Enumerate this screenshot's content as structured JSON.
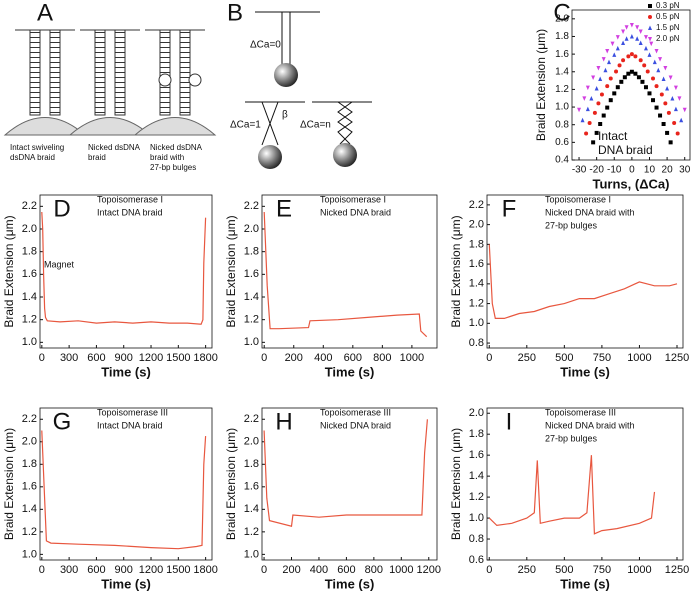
{
  "diagram_a": {
    "label": "A",
    "captions": [
      [
        "Intact swiveling",
        "dsDNA braid"
      ],
      [
        "Nicked dsDNA",
        "braid"
      ],
      [
        "Nicked dsDNA",
        "braid with",
        "27-bp bulges"
      ]
    ]
  },
  "diagram_b": {
    "label": "B",
    "labels": [
      "ΔCa=0",
      "ΔCa=1",
      "β",
      "ΔCa=n"
    ]
  },
  "chart_data": [
    {
      "type": "scatter",
      "label": "C",
      "x_label": "Turns, (ΔCa)",
      "y_label": "Braid Extension (μm)",
      "annotations": [
        "Intact",
        "DNA braid"
      ],
      "xlim": [
        -34,
        33
      ],
      "xticks": [
        -30,
        -20,
        -10,
        0,
        10,
        20,
        30
      ],
      "ylim": [
        0.4,
        2.1
      ],
      "yticks": [
        0.4,
        0.6,
        0.8,
        {
          "value": 1,
          "label": "1.0"
        },
        1.2,
        1.4,
        1.6,
        1.8,
        {
          "value": 2,
          "label": "2.0"
        }
      ],
      "series": [
        {
          "name": "0.3 pN",
          "color": "#000000",
          "marker": "square",
          "x": [
            -22,
            -20,
            -18,
            -16,
            -14,
            -12,
            -10,
            -8,
            -6,
            -4,
            -2,
            0,
            2,
            4,
            6,
            8,
            10,
            12,
            14,
            16,
            18,
            20,
            22
          ],
          "values": [
            0.6,
            0.707,
            0.808,
            0.904,
            0.994,
            1.078,
            1.155,
            1.225,
            1.286,
            1.338,
            1.378,
            1.4,
            1.378,
            1.338,
            1.286,
            1.225,
            1.155,
            1.078,
            0.994,
            0.904,
            0.808,
            0.707,
            0.6
          ]
        },
        {
          "name": "0.5 pN",
          "color": "#e8241c",
          "marker": "circle",
          "x": [
            -26,
            -24,
            -21,
            -19,
            -17,
            -14,
            -12,
            -9,
            -7,
            -5,
            -2,
            0,
            2,
            5,
            7,
            9,
            12,
            14,
            17,
            19,
            21,
            24,
            26
          ],
          "values": [
            0.7,
            0.82,
            0.934,
            1.042,
            1.143,
            1.237,
            1.324,
            1.403,
            1.472,
            1.53,
            1.575,
            1.6,
            1.575,
            1.53,
            1.472,
            1.403,
            1.324,
            1.237,
            1.143,
            1.042,
            0.934,
            0.82,
            0.7
          ]
        },
        {
          "name": "1.5 pN",
          "color": "#3b4fe0",
          "marker": "triangle",
          "x": [
            -28,
            -25,
            -23,
            -20,
            -18,
            -15,
            -13,
            -10,
            -8,
            -5,
            -3,
            0,
            3,
            5,
            8,
            10,
            13,
            15,
            18,
            20,
            23,
            25,
            28
          ],
          "values": [
            0.85,
            0.977,
            1.097,
            1.211,
            1.318,
            1.417,
            1.509,
            1.592,
            1.665,
            1.726,
            1.774,
            1.8,
            1.774,
            1.726,
            1.665,
            1.592,
            1.509,
            1.417,
            1.318,
            1.211,
            1.097,
            0.977,
            0.85
          ]
        },
        {
          "name": "2.0 pN",
          "color": "#d23fe0",
          "marker": "triangle-down",
          "x": [
            -30,
            -27,
            -25,
            -22,
            -19,
            -16,
            -14,
            -11,
            -8,
            -5,
            -3,
            0,
            3,
            5,
            8,
            11,
            14,
            16,
            19,
            22,
            25,
            27,
            30
          ],
          "values": [
            0.97,
            1.098,
            1.22,
            1.335,
            1.443,
            1.543,
            1.636,
            1.719,
            1.793,
            1.856,
            1.904,
            1.93,
            1.904,
            1.856,
            1.793,
            1.719,
            1.636,
            1.543,
            1.443,
            1.335,
            1.22,
            1.098,
            0.97
          ]
        }
      ]
    },
    {
      "type": "line",
      "label": "D",
      "x_label": "Time (s)",
      "y_label": "Braid Extension (μm)",
      "annotations": [
        "Topoisomerase I",
        "Intact DNA braid",
        "Magnet"
      ],
      "color": "#e8573f",
      "xlim": [
        -20,
        1870
      ],
      "xticks": [
        0,
        300,
        600,
        900,
        1200,
        1500,
        1800
      ],
      "ylim": [
        0.95,
        2.3
      ],
      "yticks": [
        {
          "value": 1,
          "label": "1.0"
        },
        1.2,
        1.4,
        1.6,
        1.8,
        {
          "value": 2,
          "label": "2.0"
        },
        2.2
      ],
      "x": [
        0,
        10,
        20,
        30,
        40,
        60,
        200,
        400,
        600,
        800,
        1000,
        1200,
        1400,
        1600,
        1750,
        1770,
        1780,
        1800
      ],
      "values": [
        2.15,
        2.0,
        1.6,
        1.3,
        1.22,
        1.19,
        1.18,
        1.19,
        1.17,
        1.18,
        1.17,
        1.18,
        1.17,
        1.17,
        1.16,
        1.2,
        1.7,
        2.1
      ]
    },
    {
      "type": "line",
      "label": "E",
      "x_label": "Time (s)",
      "y_label": "Braid Extension (μm)",
      "annotations": [
        "Topoisomerase I",
        "Nicked DNA braid"
      ],
      "color": "#e8573f",
      "xlim": [
        -15,
        1170
      ],
      "xticks": [
        0,
        200,
        400,
        600,
        800,
        1000
      ],
      "ylim": [
        0.95,
        2.3
      ],
      "yticks": [
        {
          "value": 1,
          "label": "1.0"
        },
        1.2,
        1.4,
        1.6,
        1.8,
        {
          "value": 2,
          "label": "2.0"
        },
        2.2
      ],
      "x": [
        0,
        20,
        40,
        100,
        300,
        310,
        500,
        700,
        900,
        1050,
        1060,
        1100
      ],
      "values": [
        2.15,
        1.5,
        1.12,
        1.12,
        1.13,
        1.19,
        1.2,
        1.22,
        1.24,
        1.25,
        1.1,
        1.05
      ]
    },
    {
      "type": "line",
      "label": "F",
      "x_label": "Time (s)",
      "y_label": "Braid Extension (μm)",
      "annotations": [
        "Topoisomerase I",
        "Nicked DNA braid with",
        "27-bp bulges"
      ],
      "color": "#e8573f",
      "xlim": [
        -15,
        1290
      ],
      "xticks": [
        0,
        250,
        500,
        750,
        1000,
        1250
      ],
      "ylim": [
        0.75,
        2.3
      ],
      "yticks": [
        0.8,
        {
          "value": 1,
          "label": "1.0"
        },
        1.2,
        1.4,
        1.6,
        1.8,
        {
          "value": 2,
          "label": "2.0"
        },
        2.2
      ],
      "x": [
        0,
        20,
        40,
        100,
        200,
        300,
        400,
        500,
        600,
        700,
        800,
        900,
        1000,
        1100,
        1200,
        1250
      ],
      "values": [
        1.8,
        1.2,
        1.05,
        1.05,
        1.1,
        1.12,
        1.17,
        1.2,
        1.25,
        1.25,
        1.3,
        1.35,
        1.42,
        1.38,
        1.38,
        1.4
      ]
    },
    {
      "type": "line",
      "label": "G",
      "x_label": "Time (s)",
      "y_label": "Braid Extension (μm)",
      "annotations": [
        "Topoisomerase III",
        "Intact DNA braid"
      ],
      "color": "#e8573f",
      "xlim": [
        -20,
        1870
      ],
      "xticks": [
        0,
        300,
        600,
        900,
        1200,
        1500,
        1800
      ],
      "ylim": [
        0.95,
        2.3
      ],
      "yticks": [
        {
          "value": 1,
          "label": "1.0"
        },
        1.2,
        1.4,
        1.6,
        1.8,
        {
          "value": 2,
          "label": "2.0"
        },
        2.2
      ],
      "x": [
        0,
        30,
        50,
        100,
        400,
        800,
        1200,
        1500,
        1700,
        1760,
        1780,
        1800
      ],
      "values": [
        2.1,
        1.5,
        1.12,
        1.1,
        1.09,
        1.08,
        1.06,
        1.05,
        1.07,
        1.08,
        1.8,
        2.05
      ]
    },
    {
      "type": "line",
      "label": "H",
      "x_label": "Time (s)",
      "y_label": "Braid Extension (μm)",
      "annotations": [
        "Topoisomerase III",
        "Nicked DNA braid"
      ],
      "color": "#e8573f",
      "xlim": [
        -15,
        1260
      ],
      "xticks": [
        0,
        200,
        400,
        600,
        800,
        1000,
        1200
      ],
      "ylim": [
        0.95,
        2.3
      ],
      "yticks": [
        {
          "value": 1,
          "label": "1.0"
        },
        1.2,
        1.4,
        1.6,
        1.8,
        {
          "value": 2,
          "label": "2.0"
        },
        2.2
      ],
      "x": [
        0,
        20,
        40,
        200,
        210,
        400,
        600,
        800,
        1000,
        1150,
        1170,
        1190
      ],
      "values": [
        2.1,
        1.5,
        1.3,
        1.25,
        1.35,
        1.33,
        1.35,
        1.35,
        1.35,
        1.35,
        1.9,
        2.2
      ]
    },
    {
      "type": "line",
      "label": "I",
      "x_label": "Time (s)",
      "y_label": "Braid Extension (μm)",
      "annotations": [
        "Topoisomerase III",
        "Nicked DNA braid with",
        "27-bp bulges"
      ],
      "color": "#e8573f",
      "xlim": [
        -15,
        1290
      ],
      "xticks": [
        0,
        250,
        500,
        750,
        1000,
        1250
      ],
      "ylim": [
        0.6,
        2.05
      ],
      "yticks": [
        0.6,
        0.8,
        {
          "value": 1,
          "label": "1.0"
        },
        1.2,
        1.4,
        1.6,
        1.8,
        {
          "value": 2,
          "label": "2.0"
        }
      ],
      "x": [
        0,
        50,
        150,
        250,
        300,
        320,
        340,
        400,
        500,
        600,
        650,
        680,
        700,
        750,
        850,
        1000,
        1080,
        1100
      ],
      "values": [
        1.0,
        0.93,
        0.95,
        1.0,
        1.05,
        1.55,
        0.95,
        0.97,
        1.0,
        1.0,
        1.05,
        1.6,
        0.85,
        0.88,
        0.9,
        0.95,
        1.0,
        1.25
      ]
    }
  ]
}
